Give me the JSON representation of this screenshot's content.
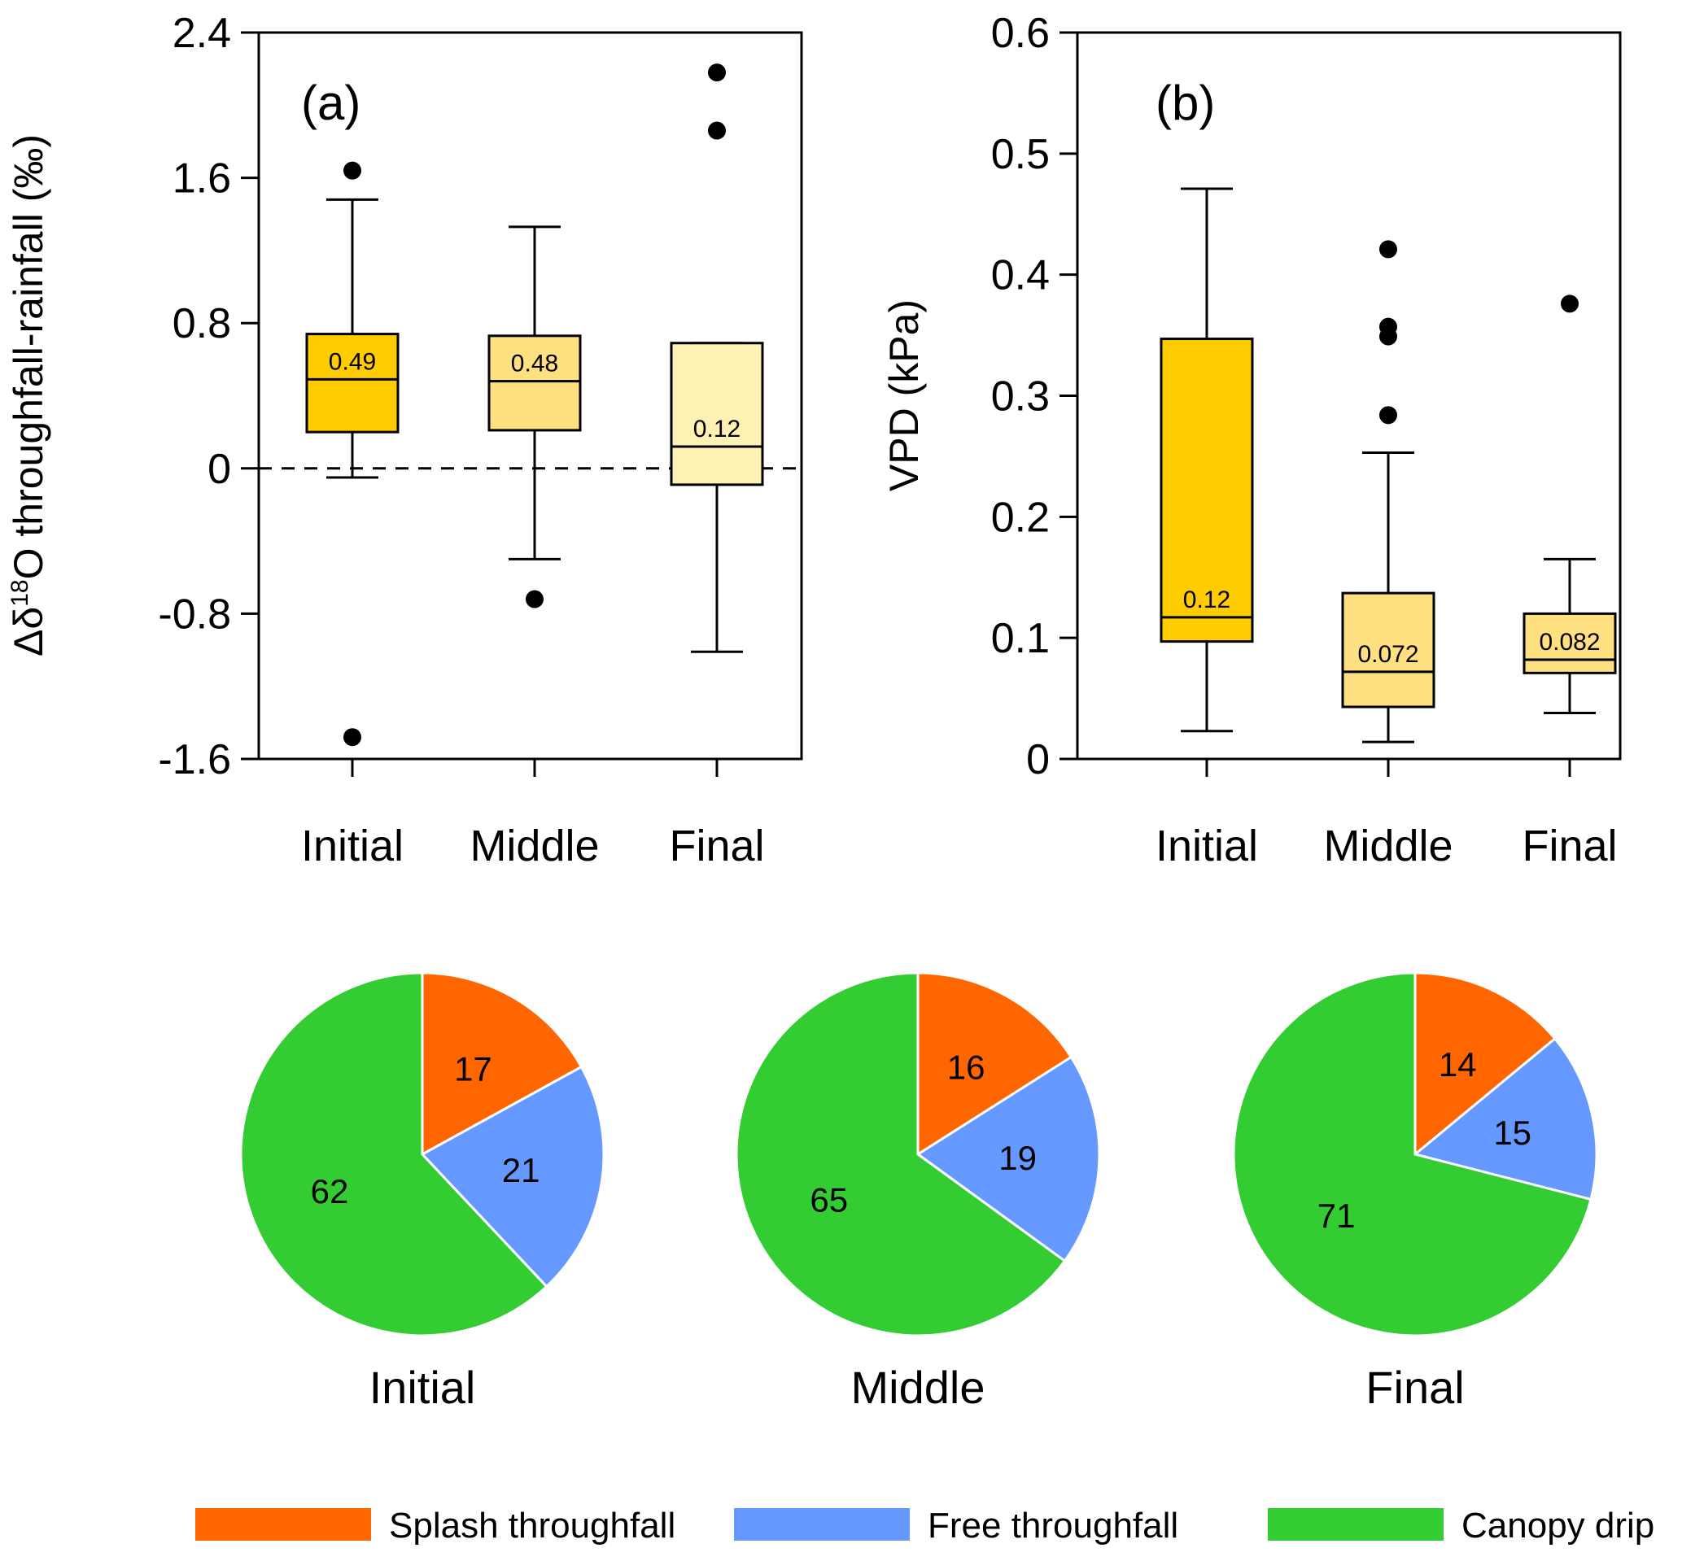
{
  "chart_data": [
    {
      "type": "box",
      "panel_label": "(a)",
      "ylabel": "Δδ¹⁸O throughfall-rainfall (‰)",
      "ylabel_parts": {
        "prefix": "Δδ",
        "sup": "18",
        "suffix": "O throughfall-rainfall (‰)"
      },
      "ylim": [
        -1.6,
        2.4
      ],
      "yticks": [
        "-1.6",
        "-0.8",
        "0",
        "0.8",
        "1.6",
        "2.4"
      ],
      "reference_line": 0,
      "categories": [
        "Initial",
        "Middle",
        "Final"
      ],
      "boxes": [
        {
          "category": "Initial",
          "whisker_low": -0.05,
          "q1": 0.2,
          "median": 0.49,
          "q3": 0.74,
          "whisker_high": 1.48,
          "outliers": [
            1.64,
            -1.48
          ],
          "median_label": "0.49",
          "color": "#FFCC00"
        },
        {
          "category": "Middle",
          "whisker_low": -0.5,
          "q1": 0.21,
          "median": 0.48,
          "q3": 0.73,
          "whisker_high": 1.33,
          "outliers": [
            -0.72
          ],
          "median_label": "0.48",
          "color": "#FFE080"
        },
        {
          "category": "Final",
          "whisker_low": -1.01,
          "q1": -0.09,
          "median": 0.12,
          "q3": 0.69,
          "whisker_high": 0.69,
          "outliers": [
            2.18,
            1.86
          ],
          "median_label": "0.12",
          "color": "#FFF0B3"
        }
      ]
    },
    {
      "type": "box",
      "panel_label": "(b)",
      "ylabel": "VPD (kPa)",
      "ylim": [
        0,
        0.6
      ],
      "yticks": [
        "0",
        "0.1",
        "0.2",
        "0.3",
        "0.4",
        "0.5",
        "0.6"
      ],
      "categories": [
        "Initial",
        "Middle",
        "Final"
      ],
      "boxes": [
        {
          "category": "Initial",
          "whisker_low": 0.023,
          "q1": 0.097,
          "median": 0.117,
          "q3": 0.347,
          "whisker_high": 0.471,
          "outliers": [],
          "median_label": "0.12",
          "color": "#FFCC00"
        },
        {
          "category": "Middle",
          "whisker_low": 0.014,
          "q1": 0.043,
          "median": 0.072,
          "q3": 0.137,
          "whisker_high": 0.253,
          "outliers": [
            0.421,
            0.357,
            0.349,
            0.284
          ],
          "median_label": "0.072",
          "color": "#FFE080"
        },
        {
          "category": "Final",
          "whisker_low": 0.038,
          "q1": 0.071,
          "median": 0.082,
          "q3": 0.12,
          "whisker_high": 0.165,
          "outliers": [
            0.376
          ],
          "median_label": "0.082",
          "color": "#FFE080"
        }
      ]
    },
    {
      "type": "pie",
      "categories": [
        "Splash throughfall",
        "Free throughfall",
        "Canopy drip"
      ],
      "colors": [
        "#FF6600",
        "#6699FF",
        "#33CC33"
      ],
      "pies": [
        {
          "title": "Initial",
          "values": [
            17,
            21,
            62
          ]
        },
        {
          "title": "Middle",
          "values": [
            16,
            19,
            65
          ]
        },
        {
          "title": "Final",
          "values": [
            14,
            15,
            71
          ]
        }
      ]
    }
  ]
}
